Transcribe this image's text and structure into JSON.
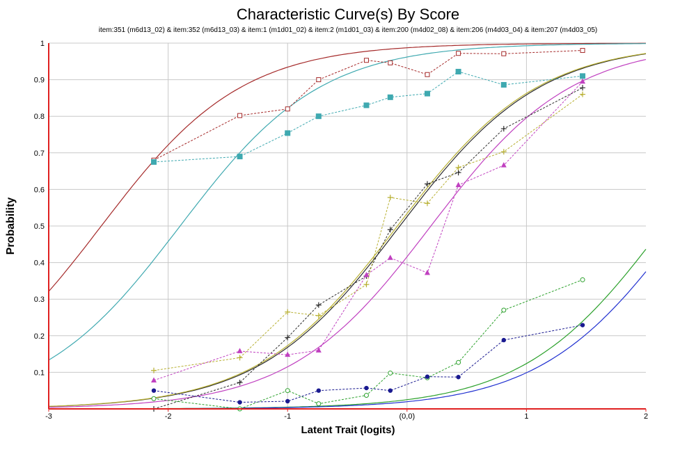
{
  "chart_data": {
    "type": "line",
    "title": "Characteristic Curve(s) By Score",
    "subtitle": "item:351 (m6d13_02) & item:352 (m6d13_03) & item:1 (m1d01_02) & item:2 (m1d01_03) & item:200 (m4d02_08) & item:206 (m4d03_04) & item:207 (m4d03_05)",
    "xlabel": "Latent Trait (logits)",
    "ylabel": "Probability",
    "xlim": [
      -3,
      2
    ],
    "ylim": [
      0,
      1
    ],
    "xticks": [
      -3,
      -2,
      -1,
      0,
      1,
      2
    ],
    "xtick_labels": [
      "-3",
      "-2",
      "-1",
      "(0,0)",
      "1",
      "2"
    ],
    "yticks": [
      0.1,
      0.2,
      0.3,
      0.4,
      0.5,
      0.6,
      0.7,
      0.8,
      0.9,
      1
    ],
    "ytick_labels": [
      "0.1",
      "0.2",
      "0.3",
      "0.4",
      "0.5",
      "0.6",
      "0.7",
      "0.8",
      "0.9",
      "1"
    ],
    "grid": true,
    "curves": [
      {
        "color": "#a52a2a",
        "b": -2.56,
        "a": 1.7
      },
      {
        "color": "#3fa9b0",
        "b": -1.9,
        "a": 1.7
      },
      {
        "color": "#2c2c2c",
        "b": -0.06,
        "a": 1.7
      },
      {
        "color": "#b8b032",
        "b": -0.08,
        "a": 1.7
      },
      {
        "color": "#c040c0",
        "b": 0.2,
        "a": 1.7
      },
      {
        "color": "#2aa02a",
        "b": 2.15,
        "a": 1.7
      },
      {
        "color": "#1f2fd0",
        "b": 2.3,
        "a": 1.7
      }
    ],
    "series": [
      {
        "color": "#a52a2a",
        "marker": "square-open",
        "x": [
          -2.12,
          -1.4,
          -1.0,
          -0.74,
          -0.34,
          -0.14,
          0.17,
          0.43,
          0.81,
          1.47
        ],
        "y": [
          0.68,
          0.802,
          0.82,
          0.9,
          0.953,
          0.946,
          0.914,
          0.972,
          0.971,
          0.98
        ]
      },
      {
        "color": "#3fa9b0",
        "marker": "square-filled",
        "x": [
          -2.12,
          -1.4,
          -1.0,
          -0.74,
          -0.34,
          -0.14,
          0.17,
          0.43,
          0.81,
          1.47
        ],
        "y": [
          0.675,
          0.69,
          0.754,
          0.8,
          0.83,
          0.852,
          0.862,
          0.922,
          0.886,
          0.91
        ]
      },
      {
        "color": "#2c2c2c",
        "marker": "plus",
        "x": [
          -2.12,
          -1.4,
          -1.0,
          -0.74,
          -0.34,
          -0.14,
          0.17,
          0.43,
          0.81,
          1.47
        ],
        "y": [
          0.0,
          0.072,
          0.195,
          0.284,
          0.363,
          0.49,
          0.615,
          0.646,
          0.766,
          0.878
        ]
      },
      {
        "color": "#b8b032",
        "marker": "plus",
        "x": [
          -2.12,
          -1.4,
          -1.0,
          -0.74,
          -0.34,
          -0.14,
          0.17,
          0.43,
          0.81,
          1.47
        ],
        "y": [
          0.105,
          0.14,
          0.265,
          0.255,
          0.34,
          0.578,
          0.562,
          0.66,
          0.703,
          0.86
        ]
      },
      {
        "color": "#c040c0",
        "marker": "triangle",
        "x": [
          -2.12,
          -1.4,
          -1.0,
          -0.74,
          -0.34,
          -0.14,
          0.17,
          0.43,
          0.81,
          1.47
        ],
        "y": [
          0.078,
          0.158,
          0.148,
          0.16,
          0.366,
          0.413,
          0.372,
          0.612,
          0.666,
          0.895
        ]
      },
      {
        "color": "#2aa02a",
        "marker": "circle-open",
        "x": [
          -2.12,
          -1.4,
          -1.0,
          -0.74,
          -0.34,
          -0.14,
          0.17,
          0.43,
          0.81,
          1.47
        ],
        "y": [
          0.028,
          0.0,
          0.05,
          0.014,
          0.037,
          0.098,
          0.085,
          0.127,
          0.27,
          0.353
        ]
      },
      {
        "color": "#1a1a90",
        "marker": "circle-filled",
        "x": [
          -2.12,
          -1.4,
          -1.0,
          -0.74,
          -0.34,
          -0.14,
          0.17,
          0.43,
          0.81,
          1.47
        ],
        "y": [
          0.05,
          0.018,
          0.021,
          0.05,
          0.057,
          0.05,
          0.088,
          0.087,
          0.188,
          0.229
        ]
      }
    ]
  }
}
